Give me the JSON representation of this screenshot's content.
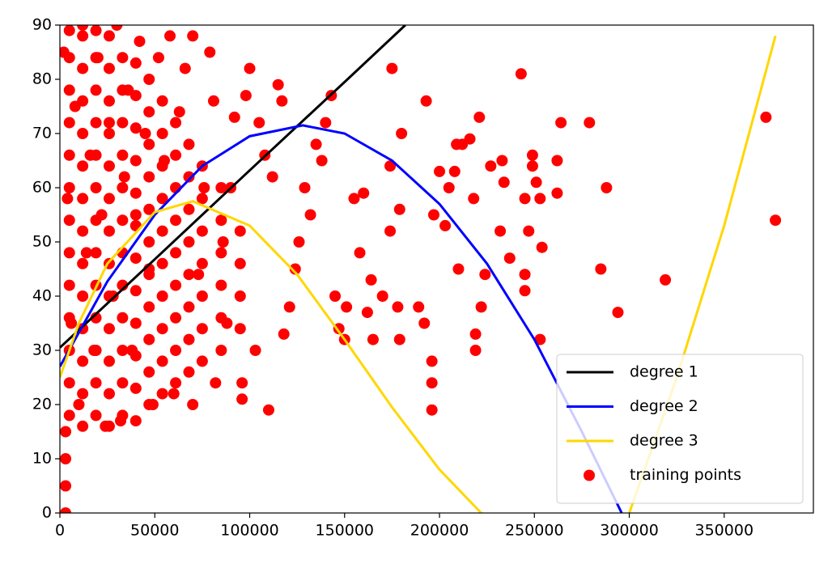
{
  "chart_data": {
    "type": "scatter",
    "xlim": [
      0,
      397000
    ],
    "ylim": [
      0,
      90
    ],
    "xticks": [
      0,
      50000,
      100000,
      150000,
      200000,
      250000,
      300000,
      350000
    ],
    "yticks": [
      0,
      10,
      20,
      30,
      40,
      50,
      60,
      70,
      80,
      90
    ],
    "legend": "lower right",
    "series": [
      {
        "name": "training points",
        "type": "scatter",
        "color": "#ff0000",
        "x": [
          5000,
          5000,
          5000,
          5000,
          5000,
          5000,
          5000,
          5000,
          5000,
          5000,
          5000,
          5000,
          5000,
          12000,
          12000,
          12000,
          12000,
          12000,
          12000,
          12000,
          12000,
          12000,
          12000,
          12000,
          12000,
          12000,
          19000,
          19000,
          19000,
          19000,
          19000,
          19000,
          19000,
          19000,
          19000,
          19000,
          19000,
          19000,
          19000,
          26000,
          26000,
          26000,
          26000,
          26000,
          26000,
          26000,
          26000,
          26000,
          26000,
          26000,
          26000,
          26000,
          33000,
          33000,
          33000,
          33000,
          33000,
          33000,
          33000,
          33000,
          33000,
          33000,
          33000,
          33000,
          40000,
          40000,
          40000,
          40000,
          40000,
          40000,
          40000,
          40000,
          40000,
          40000,
          40000,
          40000,
          47000,
          47000,
          47000,
          47000,
          47000,
          47000,
          47000,
          47000,
          47000,
          47000,
          47000,
          54000,
          54000,
          54000,
          54000,
          54000,
          54000,
          54000,
          54000,
          54000,
          54000,
          61000,
          61000,
          61000,
          61000,
          61000,
          61000,
          61000,
          61000,
          61000,
          68000,
          68000,
          68000,
          68000,
          68000,
          68000,
          68000,
          68000,
          75000,
          75000,
          75000,
          75000,
          75000,
          75000,
          75000,
          85000,
          85000,
          85000,
          85000,
          85000,
          85000,
          95000,
          95000,
          95000,
          95000,
          175000,
          243000,
          372000,
          377000,
          319000,
          294000,
          285000,
          288000,
          279000,
          264000,
          262000,
          262000,
          254000,
          253000,
          253000,
          251000,
          249000,
          249000,
          247000,
          245000,
          245000,
          245000,
          237000,
          234000,
          233000,
          232000,
          227000,
          221000,
          224000,
          222000,
          219000,
          219000,
          218000,
          216000,
          212000,
          209000,
          210000,
          208000,
          205000,
          203000,
          200000,
          197000,
          196000,
          196000,
          196000,
          193000,
          192000,
          189000,
          180000,
          179000,
          178000,
          179000,
          174000,
          174000,
          170000,
          165000,
          162000,
          164000,
          158000,
          160000,
          155000,
          151000,
          150000,
          147000,
          145000,
          143000,
          140000,
          138000,
          135000,
          132000,
          129000,
          126000,
          124000,
          121000,
          118000,
          115000,
          117000,
          112000,
          110000,
          108000,
          105000,
          103000,
          100000,
          98000,
          96000,
          96000,
          92000,
          90000,
          88000,
          86000,
          82000,
          81000,
          79000,
          76000,
          73000,
          70000,
          70000,
          66000,
          63000,
          60000,
          58000,
          55000,
          52000,
          49000,
          47000,
          45000,
          42000,
          40000,
          38000,
          36000,
          34000,
          32000,
          30000,
          28000,
          26000,
          24000,
          22000,
          20000,
          18000,
          16000,
          14000,
          12000,
          10000,
          8000,
          6000,
          4000,
          2000,
          3000,
          3000,
          3000,
          3000
        ],
        "values": [
          18,
          24,
          30,
          36,
          42,
          48,
          54,
          60,
          66,
          72,
          78,
          84,
          89,
          16,
          22,
          28,
          34,
          40,
          46,
          52,
          58,
          64,
          70,
          76,
          82,
          88,
          18,
          24,
          30,
          36,
          42,
          48,
          54,
          60,
          66,
          72,
          78,
          84,
          89,
          16,
          22,
          28,
          34,
          40,
          46,
          52,
          58,
          64,
          70,
          76,
          82,
          88,
          18,
          24,
          30,
          36,
          42,
          48,
          54,
          60,
          66,
          72,
          78,
          84,
          17,
          23,
          29,
          35,
          41,
          47,
          53,
          59,
          65,
          71,
          77,
          83,
          20,
          26,
          32,
          38,
          44,
          50,
          56,
          62,
          68,
          74,
          80,
          22,
          28,
          34,
          40,
          46,
          52,
          58,
          64,
          70,
          76,
          24,
          30,
          36,
          42,
          48,
          54,
          60,
          66,
          72,
          26,
          32,
          38,
          44,
          50,
          56,
          62,
          68,
          28,
          34,
          40,
          46,
          52,
          58,
          64,
          30,
          36,
          42,
          48,
          54,
          60,
          34,
          40,
          46,
          52,
          82,
          81,
          73,
          54,
          43,
          37,
          45,
          60,
          72,
          72,
          65,
          59,
          49,
          58,
          32,
          61,
          64,
          66,
          52,
          58,
          44,
          41,
          47,
          61,
          65,
          52,
          64,
          73,
          44,
          38,
          33,
          30,
          58,
          69,
          68,
          68,
          45,
          63,
          60,
          53,
          63,
          55,
          24,
          19,
          28,
          76,
          35,
          38,
          70,
          56,
          38,
          32,
          52,
          64,
          40,
          32,
          37,
          43,
          48,
          59,
          58,
          38,
          32,
          34,
          40,
          77,
          72,
          65,
          68,
          55,
          60,
          50,
          45,
          38,
          33,
          79,
          76,
          62,
          19,
          66,
          72,
          30,
          82,
          77,
          21,
          24,
          73,
          60,
          35,
          50,
          24,
          76,
          85,
          60,
          44,
          88,
          20,
          82,
          74,
          22,
          88,
          65,
          84,
          20,
          45,
          70,
          87,
          55,
          30,
          78,
          62,
          17,
          90,
          40,
          72,
          16,
          55,
          84,
          30,
          66,
          48,
          90,
          20,
          75,
          35,
          58,
          85,
          15,
          10,
          5,
          0
        ]
      },
      {
        "name": "degree 1",
        "type": "line",
        "color": "#000000",
        "x": [
          0,
          50000,
          100000,
          150000,
          182000
        ],
        "values": [
          30.5,
          46.8,
          63.2,
          79.5,
          90
        ]
      },
      {
        "name": "degree 2",
        "type": "line",
        "color": "#0000ff",
        "x": [
          0,
          25000,
          50000,
          75000,
          100000,
          128000,
          150000,
          175000,
          200000,
          225000,
          250000,
          275000,
          296000
        ],
        "values": [
          27,
          42.7,
          55,
          64,
          69.5,
          71.5,
          70,
          65,
          57,
          46,
          32,
          15,
          0
        ]
      },
      {
        "name": "degree 3",
        "type": "line",
        "color": "#ffd700",
        "x": [
          0,
          10000,
          25000,
          50000,
          70000,
          100000,
          125000,
          150000,
          175000,
          200000,
          222000,
          250000,
          275000,
          300000,
          325000,
          350000,
          377000
        ],
        "values": [
          25,
          35,
          46,
          55.5,
          57.5,
          53,
          44,
          32,
          19.5,
          8,
          0,
          -10,
          -10,
          0,
          25,
          53,
          88
        ]
      }
    ]
  }
}
